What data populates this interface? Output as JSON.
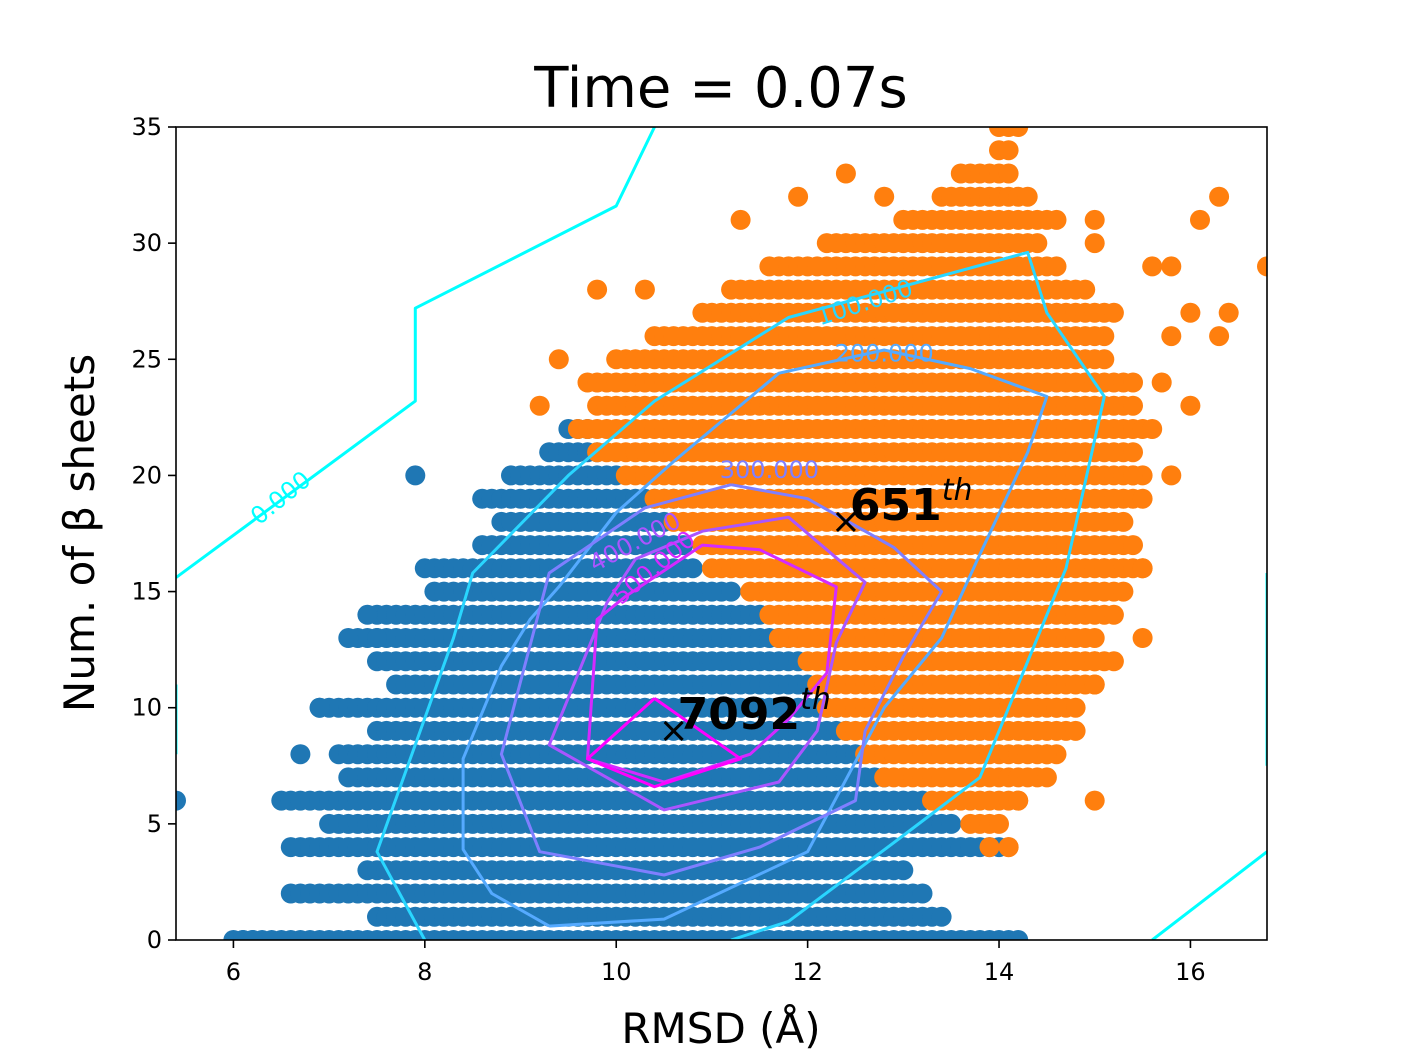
{
  "chart_data": {
    "type": "scatter",
    "title": "Time = 0.07s",
    "xlabel": "RMSD (Å)",
    "ylabel": "Num. of β sheets",
    "xlim": [
      5.4,
      16.8
    ],
    "ylim": [
      0,
      35
    ],
    "xticks": [
      6,
      8,
      10,
      12,
      14,
      16
    ],
    "yticks": [
      0,
      5,
      10,
      15,
      20,
      25,
      30,
      35
    ],
    "grid": false,
    "series": [
      {
        "color": "#1f77b4",
        "rows": [
          {
            "y": 0,
            "x0": 6.0,
            "x1": 14.2
          },
          {
            "y": 1,
            "x0": 7.5,
            "x1": 13.4
          },
          {
            "y": 2,
            "x0": 6.6,
            "x1": 13.2
          },
          {
            "y": 3,
            "x0": 7.4,
            "x1": 13.0
          },
          {
            "y": 4,
            "x0": 6.6,
            "x1": 14.0
          },
          {
            "y": 5,
            "x0": 7.0,
            "x1": 13.5
          },
          {
            "y": 6,
            "x0": 6.5,
            "x1": 13.2
          },
          {
            "y": 7,
            "x0": 7.2,
            "x1": 12.8
          },
          {
            "y": 8,
            "x0": 7.1,
            "x1": 12.5
          },
          {
            "y": 9,
            "x0": 7.5,
            "x1": 12.4
          },
          {
            "y": 10,
            "x0": 6.9,
            "x1": 12.3
          },
          {
            "y": 11,
            "x0": 7.7,
            "x1": 12.0
          },
          {
            "y": 12,
            "x0": 7.5,
            "x1": 11.9
          },
          {
            "y": 13,
            "x0": 7.3,
            "x1": 11.8
          },
          {
            "y": 14,
            "x0": 7.5,
            "x1": 11.5
          },
          {
            "y": 15,
            "x0": 8.1,
            "x1": 11.2
          },
          {
            "y": 16,
            "x0": 8.0,
            "x1": 10.8
          },
          {
            "y": 17,
            "x0": 8.6,
            "x1": 10.7
          },
          {
            "y": 18,
            "x0": 8.8,
            "x1": 10.5
          },
          {
            "y": 19,
            "x0": 8.6,
            "x1": 10.6
          },
          {
            "y": 20,
            "x0": 8.9,
            "x1": 10.0
          },
          {
            "y": 21,
            "x0": 9.3,
            "x1": 9.8
          },
          {
            "y": 22,
            "x0": 9.5,
            "x1": 9.7
          }
        ],
        "extra_points": [
          [
            6.1,
            0
          ],
          [
            6.2,
            0
          ],
          [
            5.4,
            6
          ],
          [
            6.7,
            8
          ],
          [
            6.9,
            10
          ],
          [
            7.2,
            13
          ],
          [
            7.5,
            13
          ],
          [
            7.4,
            14
          ],
          [
            7.9,
            20
          ]
        ]
      },
      {
        "color": "#ff7f0e",
        "rows": [
          {
            "y": 4,
            "x0": 14.1,
            "x1": 14.1
          },
          {
            "y": 5,
            "x0": 13.7,
            "x1": 14.0
          },
          {
            "y": 6,
            "x0": 13.3,
            "x1": 14.2
          },
          {
            "y": 7,
            "x0": 12.8,
            "x1": 14.5
          },
          {
            "y": 8,
            "x0": 12.6,
            "x1": 14.6
          },
          {
            "y": 9,
            "x0": 12.4,
            "x1": 14.8
          },
          {
            "y": 10,
            "x0": 12.2,
            "x1": 14.8
          },
          {
            "y": 11,
            "x0": 12.1,
            "x1": 15.0
          },
          {
            "y": 12,
            "x0": 12.0,
            "x1": 15.2
          },
          {
            "y": 13,
            "x0": 11.7,
            "x1": 15.0
          },
          {
            "y": 14,
            "x0": 11.6,
            "x1": 15.2
          },
          {
            "y": 15,
            "x0": 11.4,
            "x1": 15.3
          },
          {
            "y": 16,
            "x0": 11.0,
            "x1": 15.5
          },
          {
            "y": 17,
            "x0": 10.9,
            "x1": 15.4
          },
          {
            "y": 18,
            "x0": 10.6,
            "x1": 15.3
          },
          {
            "y": 19,
            "x0": 10.4,
            "x1": 15.5
          },
          {
            "y": 20,
            "x0": 10.1,
            "x1": 15.5
          },
          {
            "y": 21,
            "x0": 9.8,
            "x1": 15.4
          },
          {
            "y": 22,
            "x0": 9.6,
            "x1": 15.5
          },
          {
            "y": 23,
            "x0": 9.8,
            "x1": 15.4
          },
          {
            "y": 24,
            "x0": 9.7,
            "x1": 15.4
          },
          {
            "y": 25,
            "x0": 10.0,
            "x1": 15.1
          },
          {
            "y": 26,
            "x0": 10.4,
            "x1": 15.1
          },
          {
            "y": 27,
            "x0": 10.9,
            "x1": 15.2
          },
          {
            "y": 28,
            "x0": 11.2,
            "x1": 14.9
          },
          {
            "y": 29,
            "x0": 11.6,
            "x1": 14.6
          },
          {
            "y": 30,
            "x0": 12.2,
            "x1": 14.4
          },
          {
            "y": 31,
            "x0": 13.0,
            "x1": 14.6
          },
          {
            "y": 32,
            "x0": 13.4,
            "x1": 14.3
          },
          {
            "y": 33,
            "x0": 13.6,
            "x1": 14.1
          },
          {
            "y": 34,
            "x0": 14.0,
            "x1": 14.1
          },
          {
            "y": 35,
            "x0": 14.0,
            "x1": 14.2
          }
        ],
        "extra_points": [
          [
            9.2,
            23
          ],
          [
            9.4,
            25
          ],
          [
            9.8,
            28
          ],
          [
            10.3,
            28
          ],
          [
            11.3,
            31
          ],
          [
            11.9,
            32
          ],
          [
            12.4,
            33
          ],
          [
            12.8,
            32
          ],
          [
            15.0,
            30
          ],
          [
            15.0,
            31
          ],
          [
            15.6,
            29
          ],
          [
            15.8,
            29
          ],
          [
            16.1,
            31
          ],
          [
            16.3,
            32
          ],
          [
            16.8,
            29
          ],
          [
            15.8,
            26
          ],
          [
            16.0,
            27
          ],
          [
            16.3,
            26
          ],
          [
            16.4,
            27
          ],
          [
            15.7,
            24
          ],
          [
            15.6,
            22
          ],
          [
            15.8,
            20
          ],
          [
            16.0,
            23
          ],
          [
            15.4,
            20
          ],
          [
            15.1,
            16
          ],
          [
            15.5,
            16
          ],
          [
            15.5,
            13
          ],
          [
            15.0,
            12
          ],
          [
            15.0,
            11
          ],
          [
            14.6,
            10
          ],
          [
            14.5,
            8
          ],
          [
            14.2,
            6
          ],
          [
            15.0,
            6
          ],
          [
            13.9,
            4
          ],
          [
            14.1,
            4
          ]
        ]
      }
    ],
    "contours": [
      {
        "label": "0.000",
        "color": "#00ffff",
        "lines": [
          [
            [
              5.4,
              15.6
            ],
            [
              7.9,
              23.2
            ],
            [
              7.9,
              27.2
            ],
            [
              10.0,
              31.6
            ],
            [
              10.4,
              35.0
            ]
          ],
          [
            [
              15.6,
              0
            ],
            [
              16.8,
              3.8
            ]
          ],
          [
            [
              16.8,
              7.5
            ],
            [
              16.8,
              15.8
            ]
          ],
          [
            [
              5.4,
              8.0
            ],
            [
              5.4,
              11.0
            ]
          ]
        ]
      },
      {
        "label": "100.000",
        "color": "#29d6ff",
        "lines": [
          [
            [
              8.0,
              0
            ],
            [
              7.5,
              3.8
            ],
            [
              8.3,
              13.0
            ],
            [
              8.5,
              15.8
            ],
            [
              9.5,
              20.0
            ],
            [
              10.4,
              23.2
            ],
            [
              11.8,
              26.8
            ],
            [
              14.3,
              29.6
            ],
            [
              14.5,
              27.0
            ],
            [
              15.1,
              23.4
            ],
            [
              14.7,
              16.0
            ],
            [
              14.2,
              11.0
            ],
            [
              13.8,
              7.0
            ],
            [
              13.0,
              4.5
            ],
            [
              11.8,
              0.8
            ],
            [
              11.2,
              0
            ]
          ]
        ]
      },
      {
        "label": "200.000",
        "color": "#55aaff",
        "lines": [
          [
            [
              9.3,
              0.6
            ],
            [
              8.7,
              2.0
            ],
            [
              8.4,
              3.9
            ],
            [
              8.4,
              7.8
            ],
            [
              8.8,
              11.8
            ],
            [
              9.1,
              13.8
            ],
            [
              9.4,
              15.2
            ],
            [
              10.0,
              18.4
            ],
            [
              10.6,
              20.6
            ],
            [
              11.7,
              24.4
            ],
            [
              12.8,
              25.4
            ],
            [
              13.7,
              24.6
            ],
            [
              14.5,
              23.4
            ],
            [
              14.3,
              21.0
            ],
            [
              13.8,
              16.6
            ],
            [
              13.4,
              13.0
            ],
            [
              12.8,
              10.0
            ],
            [
              12.0,
              3.8
            ],
            [
              10.5,
              0.9
            ],
            [
              9.3,
              0.6
            ]
          ]
        ]
      },
      {
        "label": "300.000",
        "color": "#7f7fff",
        "lines": [
          [
            [
              11.2,
              19.6
            ],
            [
              10.3,
              18.6
            ],
            [
              9.3,
              15.8
            ],
            [
              8.8,
              8.0
            ],
            [
              9.2,
              3.8
            ],
            [
              10.5,
              2.8
            ],
            [
              11.5,
              4.0
            ],
            [
              12.5,
              6.0
            ],
            [
              12.6,
              9.0
            ],
            [
              13.0,
              12.2
            ],
            [
              13.4,
              15.0
            ],
            [
              12.9,
              16.9
            ],
            [
              12.0,
              19.0
            ],
            [
              11.2,
              19.6
            ]
          ]
        ]
      },
      {
        "label": "400.000",
        "color": "#aa55ff",
        "lines": [
          [
            [
              10.2,
              16.4
            ],
            [
              9.9,
              14.5
            ],
            [
              9.3,
              8.4
            ],
            [
              10.5,
              5.6
            ],
            [
              11.7,
              6.8
            ],
            [
              12.1,
              9.0
            ],
            [
              12.3,
              12.8
            ],
            [
              12.6,
              15.4
            ],
            [
              11.8,
              18.2
            ],
            [
              10.9,
              17.6
            ],
            [
              10.2,
              16.4
            ]
          ]
        ]
      },
      {
        "label": "500.000",
        "color": "#d42aff",
        "lines": [
          [
            [
              10.1,
              14.8
            ],
            [
              9.8,
              13.8
            ],
            [
              9.7,
              7.8
            ],
            [
              10.5,
              6.8
            ],
            [
              11.4,
              8.0
            ],
            [
              11.8,
              9.5
            ],
            [
              12.2,
              11.5
            ],
            [
              12.3,
              15.2
            ],
            [
              11.5,
              16.8
            ],
            [
              10.9,
              17.0
            ],
            [
              10.1,
              14.8
            ]
          ]
        ]
      },
      {
        "label": "",
        "color": "#ff00ff",
        "lines": [
          [
            [
              10.4,
              10.4
            ],
            [
              9.7,
              7.8
            ],
            [
              10.4,
              6.6
            ],
            [
              11.3,
              7.8
            ],
            [
              10.4,
              10.4
            ]
          ]
        ]
      }
    ],
    "contour_labels": [
      {
        "text": "0.000",
        "x": 6.5,
        "y": 19.0,
        "angle": -39,
        "color": "#00ffff"
      },
      {
        "text": "100.000",
        "x": 12.6,
        "y": 27.4,
        "angle": -18,
        "color": "#29d6ff"
      },
      {
        "text": "200.000",
        "x": 12.8,
        "y": 25.2,
        "angle": 0,
        "color": "#55aaff"
      },
      {
        "text": "300.000",
        "x": 11.6,
        "y": 20.2,
        "angle": 0,
        "color": "#7f7fff"
      },
      {
        "text": "400.000",
        "x": 10.2,
        "y": 17.1,
        "angle": -28,
        "color": "#aa55ff"
      },
      {
        "text": "500.000",
        "x": 10.4,
        "y": 16.0,
        "angle": -40,
        "color": "#d42aff"
      }
    ],
    "annotations": [
      {
        "x": 12.4,
        "y": 18.0,
        "text": "651",
        "sup": "th"
      },
      {
        "x": 10.6,
        "y": 9.0,
        "text": "7092",
        "sup": "th"
      }
    ]
  }
}
